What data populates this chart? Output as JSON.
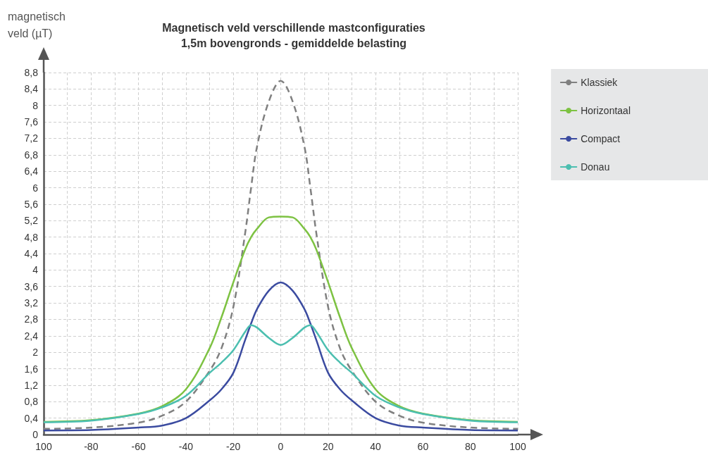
{
  "chart_data": {
    "type": "line",
    "title": "Magnetisch veld verschillende mastconfiguraties",
    "subtitle": "1,5m bovengronds - gemiddelde belasting",
    "ylabel": "magnetisch\nveld (µT)",
    "x": [
      -100,
      -80,
      -60,
      -50,
      -40,
      -30,
      -25,
      -20,
      -15,
      -12.5,
      -10,
      -5,
      0,
      5,
      10,
      12.5,
      15,
      20,
      25,
      30,
      40,
      50,
      60,
      80,
      100
    ],
    "series": [
      {
        "name": "Klassiek",
        "color": "#808080",
        "line_style": "dashed",
        "values": [
          0.14,
          0.17,
          0.29,
          0.46,
          0.8,
          1.55,
          2.1,
          3.1,
          4.9,
          6.0,
          7.0,
          8.1,
          8.6,
          8.1,
          7.0,
          6.0,
          4.9,
          3.1,
          2.1,
          1.55,
          0.8,
          0.46,
          0.29,
          0.17,
          0.14
        ]
      },
      {
        "name": "Horizontaal",
        "color": "#7dc242",
        "line_style": "solid",
        "values": [
          0.31,
          0.35,
          0.51,
          0.69,
          1.1,
          2.1,
          2.85,
          3.7,
          4.5,
          4.8,
          5.0,
          5.28,
          5.3,
          5.28,
          5.0,
          4.8,
          4.5,
          3.7,
          2.85,
          2.1,
          1.1,
          0.69,
          0.51,
          0.35,
          0.31
        ]
      },
      {
        "name": "Compact",
        "color": "#3b4ba0",
        "line_style": "solid",
        "values": [
          0.1,
          0.11,
          0.17,
          0.22,
          0.4,
          0.83,
          1.1,
          1.5,
          2.3,
          2.7,
          3.05,
          3.5,
          3.7,
          3.5,
          3.05,
          2.7,
          2.3,
          1.5,
          1.1,
          0.83,
          0.4,
          0.22,
          0.17,
          0.11,
          0.1
        ]
      },
      {
        "name": "Donau",
        "color": "#4cbfb0",
        "line_style": "solid",
        "values": [
          0.3,
          0.34,
          0.5,
          0.66,
          0.94,
          1.5,
          1.75,
          2.05,
          2.5,
          2.66,
          2.6,
          2.35,
          2.18,
          2.35,
          2.6,
          2.66,
          2.5,
          2.05,
          1.75,
          1.5,
          0.94,
          0.66,
          0.5,
          0.34,
          0.3
        ]
      }
    ],
    "xlim": [
      -100,
      100
    ],
    "xticks": [
      {
        "value": -100,
        "label": "100"
      },
      {
        "value": -90,
        "label": null
      },
      -80,
      {
        "value": -70,
        "label": null
      },
      -60,
      {
        "value": -50,
        "label": null
      },
      -40,
      {
        "value": -30,
        "label": null
      },
      -20,
      {
        "value": -10,
        "label": null
      },
      0,
      {
        "value": 10,
        "label": null
      },
      20,
      {
        "value": 30,
        "label": null
      },
      40,
      {
        "value": 50,
        "label": null
      },
      60,
      {
        "value": 70,
        "label": null
      },
      80,
      {
        "value": 90,
        "label": null
      },
      100
    ],
    "ylim": [
      0,
      8.8
    ],
    "yticks": [
      0,
      {
        "value": 0.4,
        "label": "0,4"
      },
      {
        "value": 0.8,
        "label": "0,8"
      },
      {
        "value": 1.2,
        "label": "1,2"
      },
      {
        "value": 1.6,
        "label": "1,6"
      },
      2,
      {
        "value": 2.4,
        "label": "2,4"
      },
      {
        "value": 2.8,
        "label": "2,8"
      },
      {
        "value": 3.2,
        "label": "3,2"
      },
      {
        "value": 3.6,
        "label": "3,6"
      },
      4,
      {
        "value": 4.4,
        "label": "4,4"
      },
      {
        "value": 4.8,
        "label": "4,8"
      },
      {
        "value": 5.2,
        "label": "5,2"
      },
      {
        "value": 5.6,
        "label": "5,6"
      },
      6,
      {
        "value": 6.4,
        "label": "6,4"
      },
      {
        "value": 6.8,
        "label": "6,8"
      },
      {
        "value": 7.2,
        "label": "7,2"
      },
      {
        "value": 7.6,
        "label": "7,6"
      },
      8,
      {
        "value": 8.4,
        "label": "8,4"
      },
      {
        "value": 8.8,
        "label": "8,8"
      }
    ],
    "grid": true,
    "legend": "top right",
    "marker": "none"
  }
}
